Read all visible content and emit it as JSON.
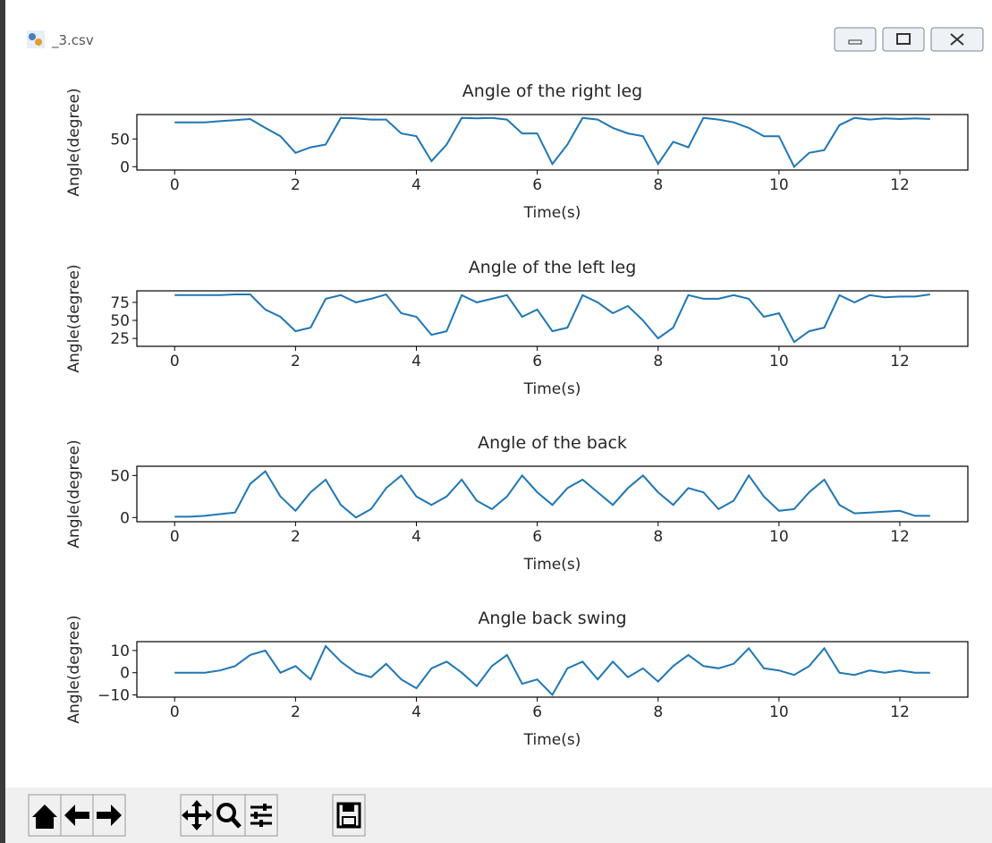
{
  "window_title": "_3.csv",
  "chart_data": [
    {
      "type": "line",
      "title": "Angle of the right leg",
      "xlabel": "Time(s)",
      "ylabel": "Angle(degree)",
      "color": "#1f77b4",
      "x": [
        0,
        0.25,
        0.5,
        0.75,
        1,
        1.25,
        1.5,
        1.75,
        2,
        2.25,
        2.5,
        2.75,
        3,
        3.25,
        3.5,
        3.75,
        4,
        4.25,
        4.5,
        4.75,
        5,
        5.25,
        5.5,
        5.75,
        6,
        6.25,
        6.5,
        6.75,
        7,
        7.25,
        7.5,
        7.75,
        8,
        8.25,
        8.5,
        8.75,
        9,
        9.25,
        9.5,
        9.75,
        10,
        10.25,
        10.5,
        10.75,
        11,
        11.25,
        11.5,
        11.75,
        12,
        12.25,
        12.5
      ],
      "values": [
        80,
        80,
        80,
        82,
        84,
        86,
        70,
        55,
        25,
        35,
        40,
        88,
        87,
        85,
        85,
        60,
        55,
        10,
        40,
        88,
        87,
        88,
        85,
        60,
        60,
        5,
        40,
        88,
        85,
        70,
        60,
        55,
        5,
        45,
        35,
        88,
        85,
        80,
        70,
        55,
        55,
        0,
        25,
        30,
        75,
        88,
        85,
        87,
        86,
        87,
        86
      ],
      "xlim": [
        -0.625,
        13.125
      ],
      "xticks": [
        0,
        2,
        4,
        6,
        8,
        10,
        12
      ],
      "ylim": [
        -6,
        94
      ],
      "yticks": [
        0,
        50
      ]
    },
    {
      "type": "line",
      "title": "Angle of the left leg",
      "xlabel": "Time(s)",
      "ylabel": "Angle(degree)",
      "color": "#1f77b4",
      "x": [
        0,
        0.25,
        0.5,
        0.75,
        1,
        1.25,
        1.5,
        1.75,
        2,
        2.25,
        2.5,
        2.75,
        3,
        3.25,
        3.5,
        3.75,
        4,
        4.25,
        4.5,
        4.75,
        5,
        5.25,
        5.5,
        5.75,
        6,
        6.25,
        6.5,
        6.75,
        7,
        7.25,
        7.5,
        7.75,
        8,
        8.25,
        8.5,
        8.75,
        9,
        9.25,
        9.5,
        9.75,
        10,
        10.25,
        10.5,
        10.75,
        11,
        11.25,
        11.5,
        11.75,
        12,
        12.25,
        12.5
      ],
      "values": [
        85,
        85,
        85,
        85,
        86,
        86,
        65,
        55,
        35,
        40,
        80,
        85,
        75,
        80,
        86,
        60,
        55,
        30,
        35,
        85,
        75,
        80,
        85,
        55,
        65,
        35,
        40,
        85,
        75,
        60,
        70,
        50,
        25,
        40,
        85,
        80,
        80,
        85,
        80,
        55,
        60,
        20,
        35,
        40,
        85,
        75,
        85,
        82,
        83,
        83,
        86
      ],
      "xlim": [
        -0.625,
        13.125
      ],
      "xticks": [
        0,
        2,
        4,
        6,
        8,
        10,
        12
      ],
      "ylim": [
        14,
        91
      ],
      "yticks": [
        25,
        50,
        75
      ]
    },
    {
      "type": "line",
      "title": "Angle of the back",
      "xlabel": "Time(s)",
      "ylabel": "Angle(degree)",
      "color": "#1f77b4",
      "x": [
        0,
        0.25,
        0.5,
        0.75,
        1,
        1.25,
        1.5,
        1.75,
        2,
        2.25,
        2.5,
        2.75,
        3,
        3.25,
        3.5,
        3.75,
        4,
        4.25,
        4.5,
        4.75,
        5,
        5.25,
        5.5,
        5.75,
        6,
        6.25,
        6.5,
        6.75,
        7,
        7.25,
        7.5,
        7.75,
        8,
        8.25,
        8.5,
        8.75,
        9,
        9.25,
        9.5,
        9.75,
        10,
        10.25,
        10.5,
        10.75,
        11,
        11.25,
        11.5,
        11.75,
        12,
        12.25,
        12.5
      ],
      "values": [
        1,
        1,
        2,
        4,
        6,
        40,
        55,
        25,
        8,
        30,
        45,
        15,
        0,
        10,
        35,
        50,
        25,
        15,
        25,
        45,
        20,
        10,
        25,
        50,
        30,
        15,
        35,
        45,
        30,
        15,
        35,
        50,
        30,
        15,
        35,
        30,
        10,
        20,
        50,
        25,
        8,
        10,
        30,
        45,
        15,
        5,
        6,
        7,
        8,
        2,
        2
      ],
      "xlim": [
        -0.625,
        13.125
      ],
      "xticks": [
        0,
        2,
        4,
        6,
        8,
        10,
        12
      ],
      "ylim": [
        -5,
        61
      ],
      "yticks": [
        0,
        50
      ]
    },
    {
      "type": "line",
      "title": "Angle back swing",
      "xlabel": "Time(s)",
      "ylabel": "Angle(degree)",
      "color": "#1f77b4",
      "x": [
        0,
        0.25,
        0.5,
        0.75,
        1,
        1.25,
        1.5,
        1.75,
        2,
        2.25,
        2.5,
        2.75,
        3,
        3.25,
        3.5,
        3.75,
        4,
        4.25,
        4.5,
        4.75,
        5,
        5.25,
        5.5,
        5.75,
        6,
        6.25,
        6.5,
        6.75,
        7,
        7.25,
        7.5,
        7.75,
        8,
        8.25,
        8.5,
        8.75,
        9,
        9.25,
        9.5,
        9.75,
        10,
        10.25,
        10.5,
        10.75,
        11,
        11.25,
        11.5,
        11.75,
        12,
        12.25,
        12.5
      ],
      "values": [
        0,
        0,
        0,
        1,
        3,
        8,
        10,
        0,
        3,
        -3,
        12,
        5,
        0,
        -2,
        4,
        -3,
        -7,
        2,
        5,
        0,
        -6,
        3,
        8,
        -5,
        -3,
        -10,
        2,
        5,
        -3,
        5,
        -2,
        2,
        -4,
        3,
        8,
        3,
        2,
        4,
        11,
        2,
        1,
        -1,
        3,
        11,
        0,
        -1,
        1,
        0,
        1,
        0,
        0
      ],
      "xlim": [
        -0.625,
        13.125
      ],
      "xticks": [
        0,
        2,
        4,
        6,
        8,
        10,
        12
      ],
      "ylim": [
        -11,
        14
      ],
      "yticks": [
        {
          "value": -10,
          "label": "−10"
        },
        0,
        10
      ]
    }
  ]
}
